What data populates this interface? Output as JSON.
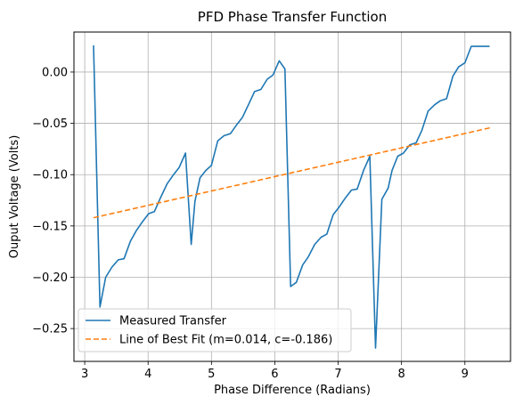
{
  "chart_data": {
    "type": "line",
    "title": "PFD Phase Transfer Function",
    "xlabel": "Phase Difference (Radians)",
    "ylabel": "Ouput Voltage (Volts)",
    "xlim": [
      2.83,
      9.72
    ],
    "ylim": [
      -0.282,
      0.039
    ],
    "xticks": [
      3,
      4,
      5,
      6,
      7,
      8,
      9
    ],
    "xtick_labels": [
      "3",
      "4",
      "5",
      "6",
      "7",
      "8",
      "9"
    ],
    "yticks": [
      0.0,
      -0.05,
      -0.1,
      -0.15,
      -0.2,
      -0.25
    ],
    "ytick_labels": [
      "0.00",
      "−0.05",
      "−0.10",
      "−0.15",
      "−0.20",
      "−0.25"
    ],
    "grid": true,
    "legend_position": "lower-left",
    "series": [
      {
        "name": "Measured Transfer",
        "style": "solid",
        "color": "#1f77b4",
        "x": [
          3.14,
          3.24,
          3.33,
          3.43,
          3.53,
          3.62,
          3.72,
          3.81,
          3.91,
          4.01,
          4.1,
          4.2,
          4.3,
          4.39,
          4.49,
          4.59,
          4.68,
          4.74,
          4.82,
          4.91,
          5.0,
          5.1,
          5.2,
          5.3,
          5.39,
          5.49,
          5.59,
          5.68,
          5.78,
          5.88,
          5.97,
          6.07,
          6.16,
          6.25,
          6.34,
          6.44,
          6.53,
          6.63,
          6.73,
          6.82,
          6.92,
          7.01,
          7.11,
          7.21,
          7.3,
          7.4,
          7.5,
          7.59,
          7.69,
          7.79,
          7.85,
          7.94,
          8.03,
          8.13,
          8.23,
          8.32,
          8.42,
          8.52,
          8.61,
          8.71,
          8.81,
          8.9,
          9.0,
          9.1,
          9.19,
          9.29,
          9.39
        ],
        "y": [
          0.026,
          -0.229,
          -0.2,
          -0.19,
          -0.183,
          -0.182,
          -0.165,
          -0.155,
          -0.146,
          -0.138,
          -0.136,
          -0.122,
          -0.109,
          -0.101,
          -0.093,
          -0.079,
          -0.168,
          -0.126,
          -0.103,
          -0.096,
          -0.091,
          -0.067,
          -0.062,
          -0.06,
          -0.052,
          -0.044,
          -0.031,
          -0.019,
          -0.017,
          -0.007,
          -0.003,
          0.011,
          0.003,
          -0.209,
          -0.205,
          -0.188,
          -0.18,
          -0.168,
          -0.161,
          -0.158,
          -0.139,
          -0.132,
          -0.123,
          -0.115,
          -0.114,
          -0.096,
          -0.082,
          -0.269,
          -0.124,
          -0.113,
          -0.096,
          -0.082,
          -0.079,
          -0.071,
          -0.069,
          -0.057,
          -0.038,
          -0.032,
          -0.028,
          -0.026,
          -0.004,
          0.005,
          0.009,
          0.025,
          0.025,
          0.025,
          0.025
        ]
      },
      {
        "name": "Line of Best Fit (m=0.014, c=-0.186)",
        "style": "dashed",
        "color": "#ff7f0e",
        "x": [
          3.14,
          9.42
        ],
        "y": [
          -0.142,
          -0.054
        ]
      }
    ]
  }
}
